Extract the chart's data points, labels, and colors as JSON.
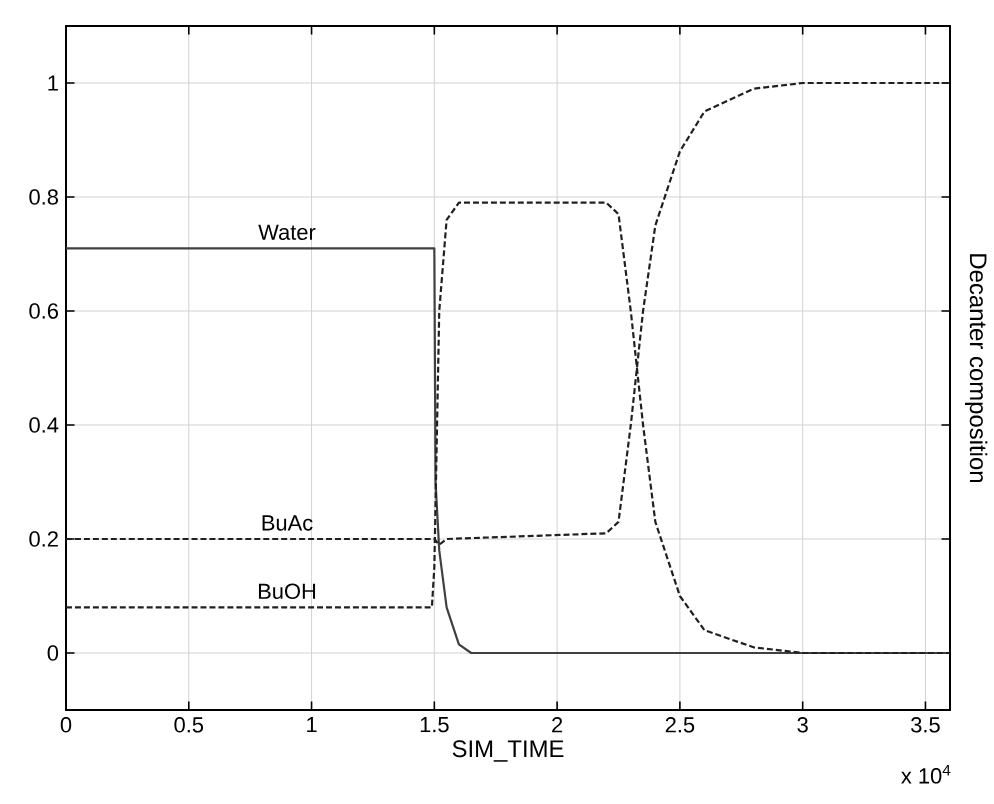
{
  "chart_data": {
    "type": "line",
    "xlabel": "SIM_TIME",
    "ylabel": "Decanter composition",
    "xlim": [
      0,
      3.6
    ],
    "ylim": [
      -0.1,
      1.1
    ],
    "xticks": [
      0,
      0.5,
      1,
      1.5,
      2,
      2.5,
      3,
      3.5
    ],
    "yticks": [
      0,
      0.2,
      0.4,
      0.6,
      0.8,
      1
    ],
    "grid": true,
    "legend": false,
    "marker": "none",
    "annotations": [
      "x 10$^{4}$"
    ],
    "series": [
      {
        "name": "Water",
        "color": "#404040",
        "line_style": "solid",
        "x": [
          0,
          1.49,
          1.5,
          1.505,
          1.52,
          1.55,
          1.6,
          1.65,
          3.6
        ],
        "values": [
          0.71,
          0.71,
          0.71,
          0.3,
          0.18,
          0.08,
          0.015,
          0,
          0
        ]
      },
      {
        "name": "BuAc",
        "color": "#202020",
        "line_style": "dashed",
        "x": [
          0,
          1.5,
          1.52,
          1.55,
          2.2,
          2.25,
          2.3,
          2.35,
          2.4,
          2.5,
          2.6,
          2.8,
          3.0,
          3.6
        ],
        "values": [
          0.2,
          0.2,
          0.19,
          0.2,
          0.21,
          0.23,
          0.4,
          0.6,
          0.75,
          0.88,
          0.95,
          0.99,
          1.0,
          1.0
        ]
      },
      {
        "name": "BuOH",
        "color": "#202020",
        "line_style": "dashed",
        "x": [
          0,
          1.49,
          1.5,
          1.52,
          1.55,
          1.6,
          2.2,
          2.25,
          2.3,
          2.35,
          2.4,
          2.5,
          2.6,
          2.8,
          3.0,
          3.6
        ],
        "values": [
          0.08,
          0.08,
          0.15,
          0.6,
          0.76,
          0.79,
          0.79,
          0.77,
          0.6,
          0.4,
          0.23,
          0.1,
          0.04,
          0.01,
          0.0,
          0
        ]
      }
    ]
  }
}
